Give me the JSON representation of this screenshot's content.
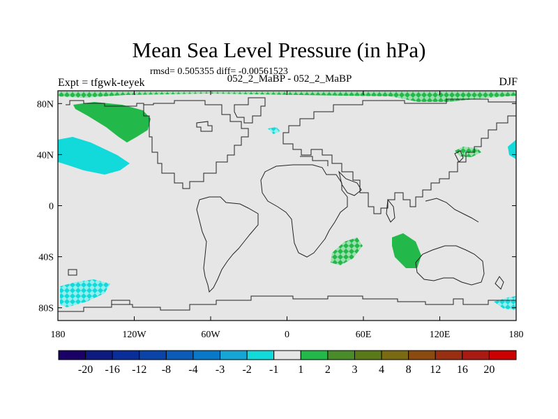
{
  "plot": {
    "title": "Mean Sea Level Pressure (in hPa)",
    "stats": "rmsd= 0.505355 diff= -0.00561523",
    "left_label": "Expt = tfgwk-teyek",
    "center_label": "052_2_MaBP - 052_2_MaBP",
    "season": "DJF"
  },
  "axes": {
    "lat_ticks": [
      "80N",
      "40N",
      "0",
      "40S",
      "80S"
    ],
    "lon_ticks": [
      "180",
      "120W",
      "60W",
      "0",
      "60E",
      "120E",
      "180"
    ]
  },
  "colorbar": {
    "colors": [
      "#1a0066",
      "#0d1a80",
      "#0a2e99",
      "#0a44a8",
      "#0a5cb8",
      "#0a78c8",
      "#16a6d6",
      "#12dada",
      "#e6e6e6",
      "#22b84a",
      "#4a8c2a",
      "#5a7a1a",
      "#7a6a12",
      "#8a4a10",
      "#9a2e10",
      "#a81a12",
      "#cc0000"
    ],
    "labels": [
      "-20",
      "-16",
      "-12",
      "-8",
      "-4",
      "-3",
      "-2",
      "-1",
      "1",
      "2",
      "3",
      "4",
      "8",
      "12",
      "16",
      "20"
    ]
  },
  "colors": {
    "land_sea_bg": "#e6e6e6",
    "positive_fill": "#22b84a",
    "negative_fill": "#12dada"
  }
}
